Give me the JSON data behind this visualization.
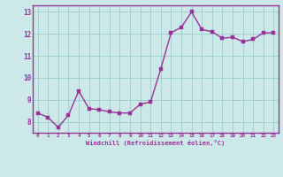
{
  "x": [
    0,
    1,
    2,
    3,
    4,
    5,
    6,
    7,
    8,
    9,
    10,
    11,
    12,
    13,
    14,
    15,
    16,
    17,
    18,
    19,
    20,
    21,
    22,
    23
  ],
  "y": [
    8.4,
    8.2,
    7.75,
    8.3,
    9.4,
    8.6,
    8.55,
    8.45,
    8.4,
    8.4,
    8.8,
    8.9,
    10.4,
    12.05,
    12.3,
    13.0,
    12.2,
    12.1,
    11.8,
    11.85,
    11.65,
    11.75,
    12.05,
    12.05
  ],
  "line_color": "#993399",
  "marker_color": "#993399",
  "background_color": "#cce8e8",
  "grid_color": "#99cccc",
  "xlabel": "Windchill (Refroidissement éolien,°C)",
  "ylabel": "",
  "xlim": [
    -0.5,
    23.5
  ],
  "ylim": [
    7.5,
    13.3
  ],
  "yticks": [
    8,
    9,
    10,
    11,
    12,
    13
  ],
  "xticks": [
    0,
    1,
    2,
    3,
    4,
    5,
    6,
    7,
    8,
    9,
    10,
    11,
    12,
    13,
    14,
    15,
    16,
    17,
    18,
    19,
    20,
    21,
    22,
    23
  ],
  "line_width": 1.0,
  "marker_size": 2.5
}
